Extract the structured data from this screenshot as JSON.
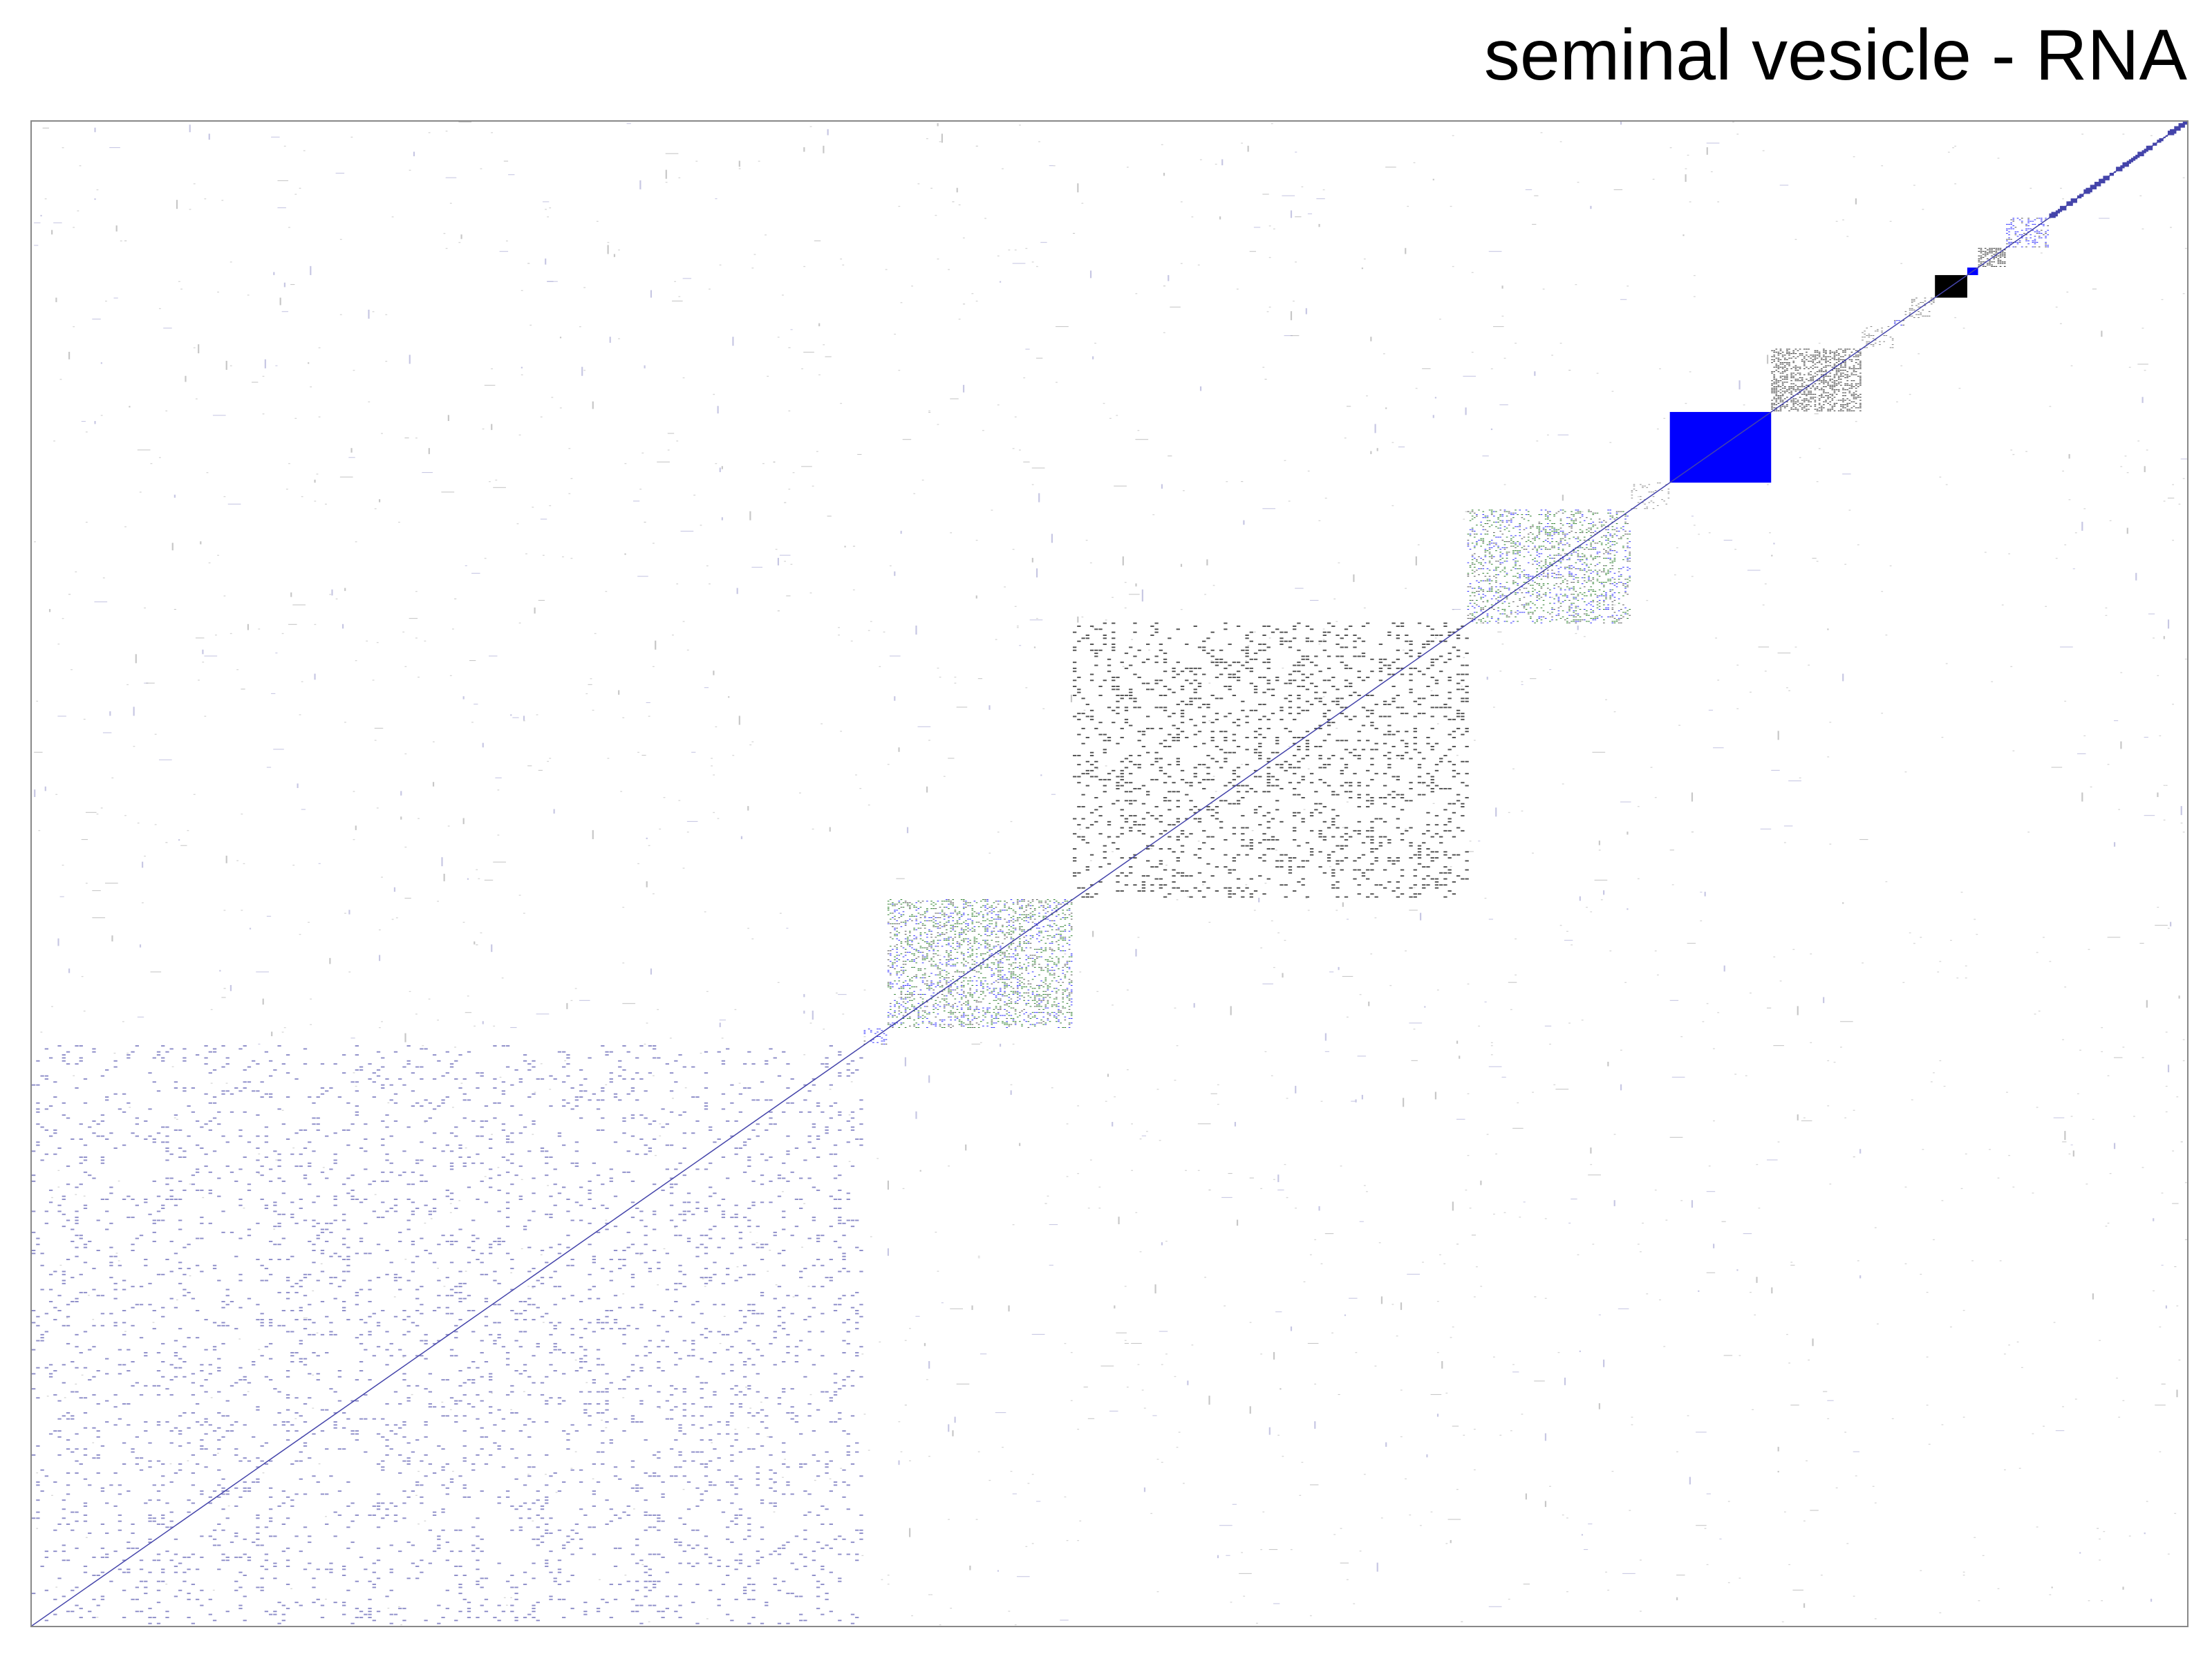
{
  "chart_data": {
    "type": "heatmap",
    "title": "seminal vesicle - RNA",
    "xlabel": "",
    "ylabel": "",
    "matrix_size": 1000,
    "colors": {
      "black": "#000000",
      "blue": "#0000ff",
      "green": "#006400",
      "grey": "#aaaaaa",
      "frame": "#888888"
    },
    "clusters": [
      {
        "start": 0,
        "end": 385,
        "color": "#7a7ac0",
        "density": 0.16,
        "style": "sparse"
      },
      {
        "start": 386,
        "end": 396,
        "color": "#0000ff",
        "density": 0.5,
        "style": "mixed"
      },
      {
        "start": 397,
        "end": 482,
        "color": "#006400",
        "density": 0.5,
        "style": "mixed"
      },
      {
        "start": 483,
        "end": 665,
        "color": "#333333",
        "density": 0.32,
        "style": "sparse"
      },
      {
        "start": 666,
        "end": 741,
        "color": "#006400",
        "density": 0.45,
        "style": "mixed"
      },
      {
        "start": 742,
        "end": 759,
        "color": "#777777",
        "density": 0.25,
        "style": "sparse"
      },
      {
        "start": 760,
        "end": 806,
        "color": "#0000ff",
        "density": 1.0,
        "style": "solid"
      },
      {
        "start": 807,
        "end": 848,
        "color": "#000000",
        "density": 0.45,
        "style": "dense"
      },
      {
        "start": 849,
        "end": 863,
        "color": "#666666",
        "density": 0.3,
        "style": "sparse"
      },
      {
        "start": 864,
        "end": 868,
        "color": "#0000ff",
        "density": 0.6,
        "style": "mixed"
      },
      {
        "start": 869,
        "end": 882,
        "color": "#555555",
        "density": 0.35,
        "style": "sparse"
      },
      {
        "start": 883,
        "end": 897,
        "color": "#000000",
        "density": 1.0,
        "style": "solid"
      },
      {
        "start": 898,
        "end": 902,
        "color": "#0000ff",
        "density": 0.9,
        "style": "solid"
      },
      {
        "start": 903,
        "end": 915,
        "color": "#000000",
        "density": 0.6,
        "style": "dense"
      },
      {
        "start": 916,
        "end": 935,
        "color": "#0000ff",
        "density": 0.6,
        "style": "mixed"
      },
      {
        "start": 936,
        "end": 999,
        "color": "#4444aa",
        "density": 0.5,
        "style": "diagonal"
      }
    ]
  }
}
